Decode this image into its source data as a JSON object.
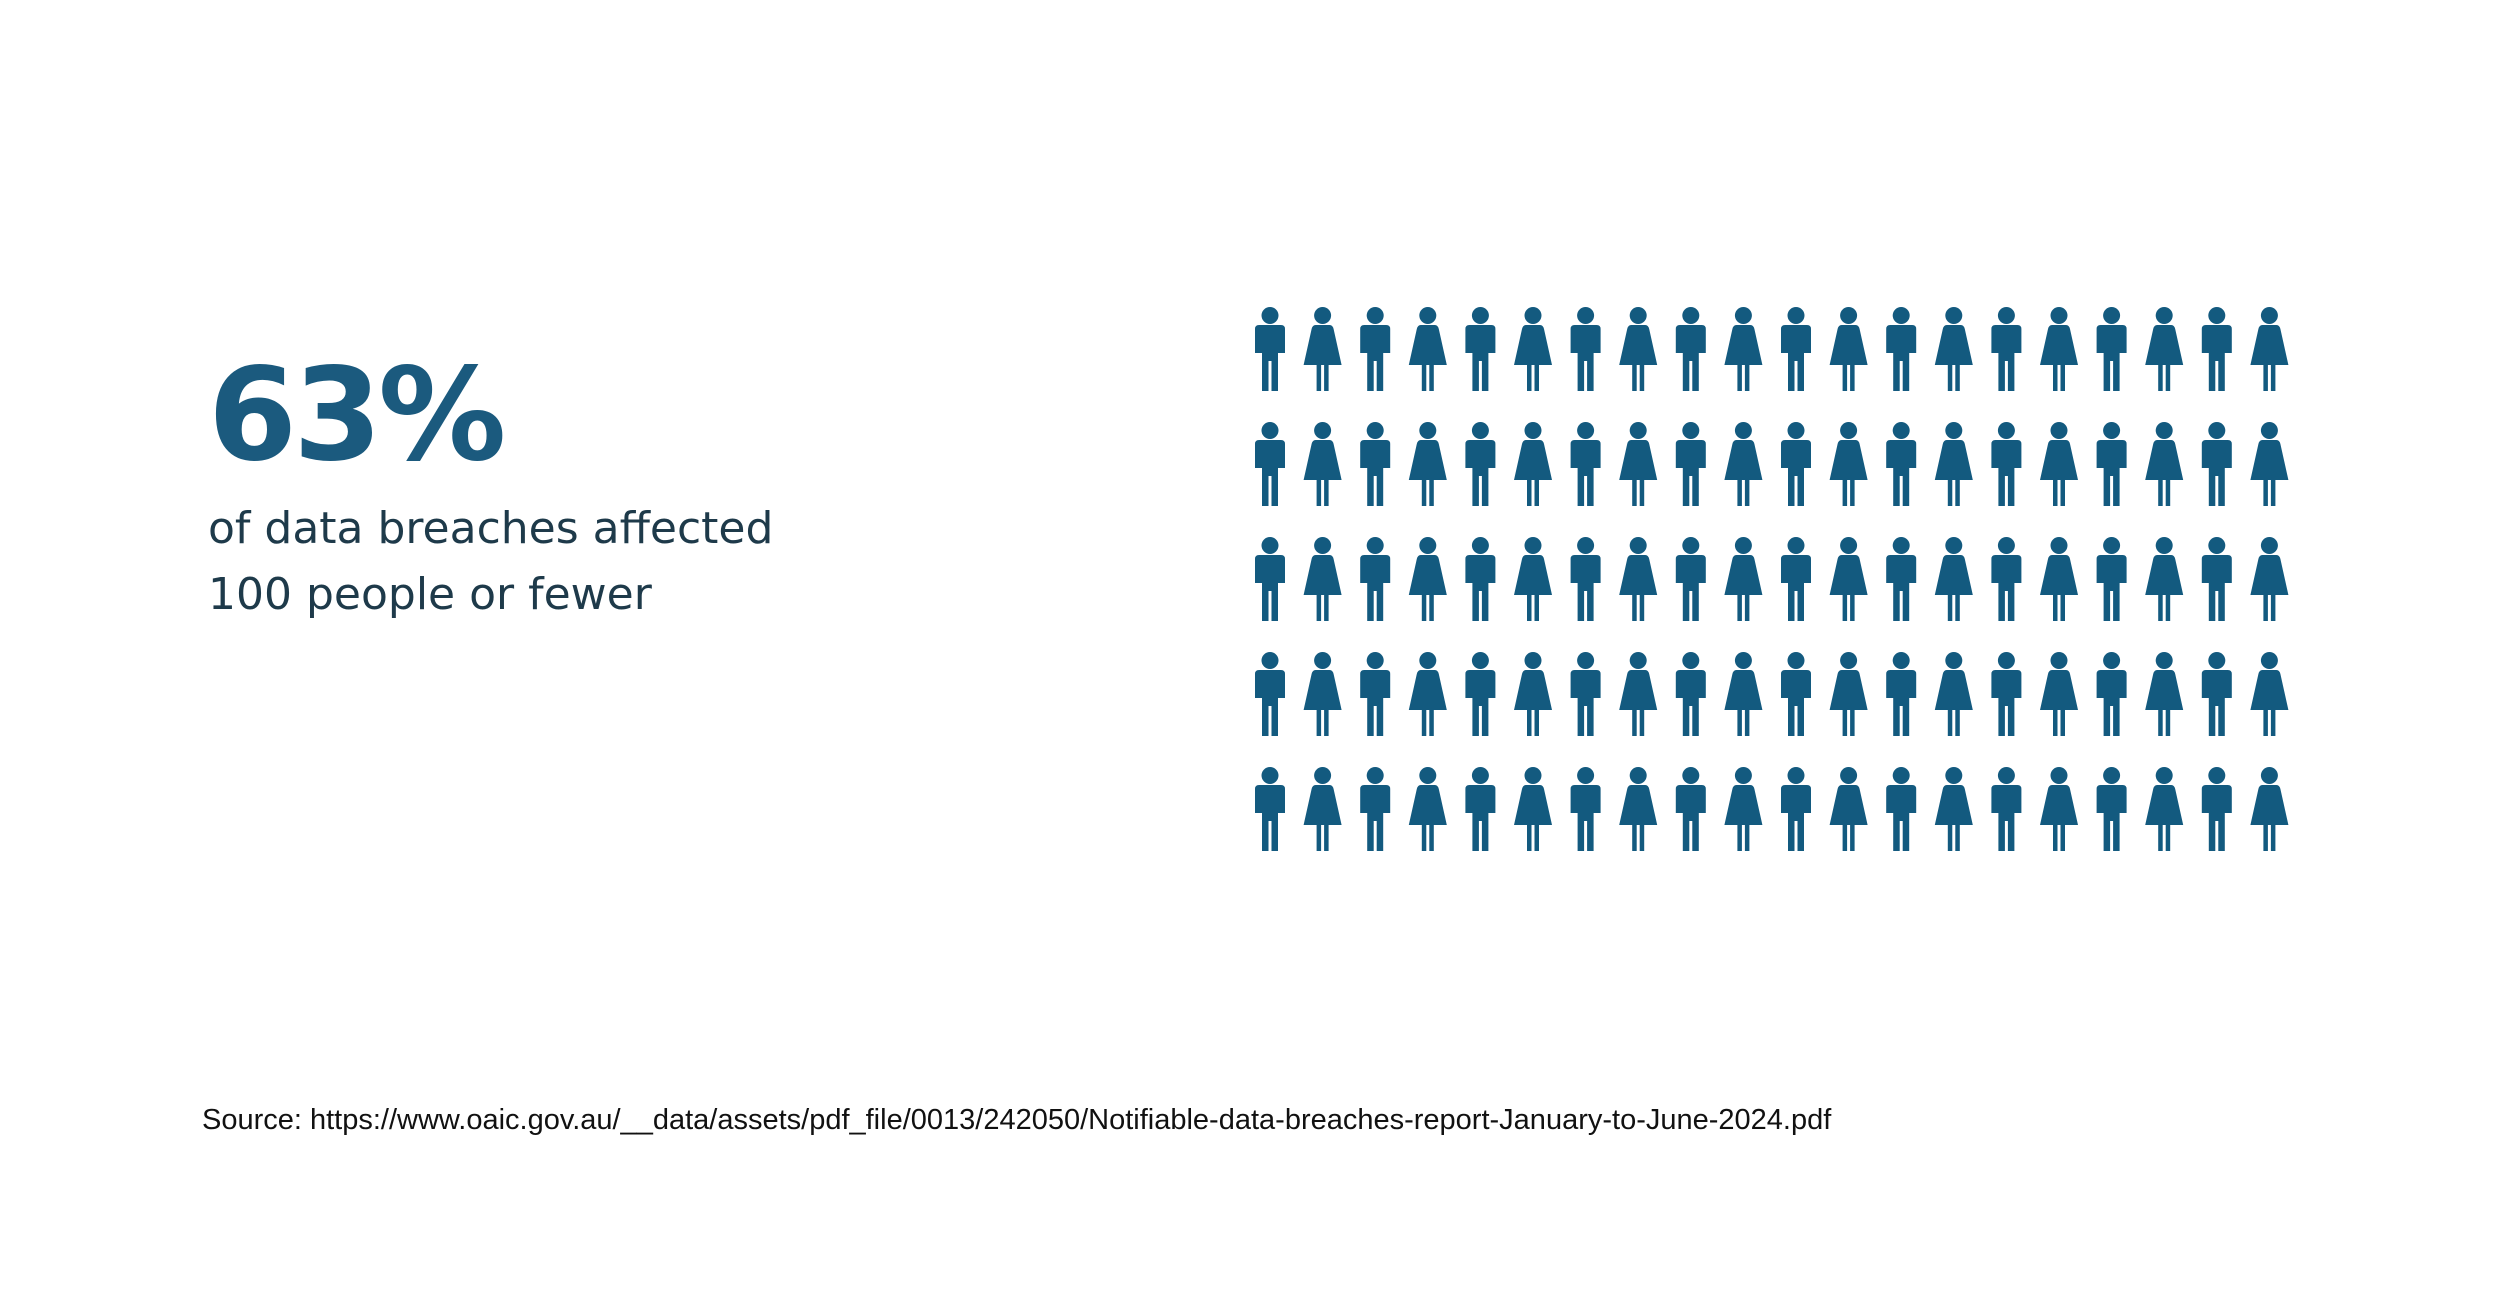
{
  "headline": {
    "value": "63%",
    "caption_line1": "of data breaches affected",
    "caption_line2": "100 people or fewer"
  },
  "source": "Source: https://www.oaic.gov.au/__data/assets/pdf_file/0013/242050/Notifiable-data-breaches-report-January-to-June-2024.pdf",
  "colors": {
    "accent": "#1b5a7e",
    "icon": "#135a7f",
    "caption_text": "#1e3a4a",
    "source_text": "#111111"
  },
  "chart_data": {
    "type": "pictogram",
    "rows": 5,
    "columns": 20,
    "total_icons": 100,
    "icon_pattern": [
      "male-person-icon",
      "female-person-icon"
    ],
    "highlighted_percent": 63
  }
}
